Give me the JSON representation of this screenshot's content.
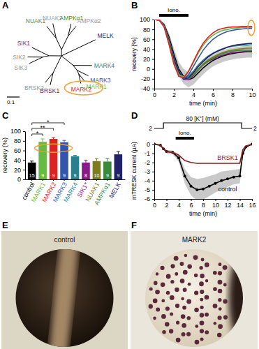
{
  "chart_data": [
    {
      "type": "tree",
      "panel": "A",
      "scale_bar": 0.1,
      "tree": {
        "children": [
          {
            "length": 0.05,
            "children": [
              {
                "length": 0.1,
                "children": [
                  {
                    "name": "NUAK1",
                    "color": "#7d7d1e",
                    "length": 0.12
                  },
                  {
                    "name": "NUAK2",
                    "color": "#999999",
                    "length": 0.12
                  }
                ]
              },
              {
                "length": 0.12,
                "children": [
                  {
                    "name": "AMPKα1",
                    "color": "#3a8a3a",
                    "length": 0.1
                  },
                  {
                    "name": "AMPKα2",
                    "color": "#999999",
                    "length": 0.1
                  }
                ]
              }
            ]
          },
          {
            "name": "MELK",
            "color": "#222266",
            "length": 0.3
          },
          {
            "length": 0.12,
            "children": [
              {
                "name": "MARK4",
                "color": "#2a7f8f",
                "length": 0.15
              },
              {
                "length": 0.05,
                "children": [
                  {
                    "name": "MARK3",
                    "color": "#3355aa",
                    "length": 0.1
                  },
                  {
                    "length": 0.03,
                    "children": [
                      {
                        "name": "MARK1",
                        "color": "#66bb44",
                        "length": 0.08
                      },
                      {
                        "name": "MARK2",
                        "color": "#dd2222",
                        "length": 0.08
                      }
                    ]
                  }
                ]
              }
            ]
          },
          {
            "length": 0.15,
            "children": [
              {
                "name": "BRSK1",
                "color": "#8b1a1a",
                "length": 0.1
              },
              {
                "name": "BRSK2",
                "color": "#999999",
                "length": 0.1
              }
            ]
          },
          {
            "length": 0.1,
            "children": [
              {
                "length": 0.05,
                "children": [
                  {
                    "name": "SIK3",
                    "color": "#999999",
                    "length": 0.12
                  },
                  {
                    "name": "SIK2",
                    "color": "#999999",
                    "length": 0.12
                  }
                ]
              },
              {
                "name": "SIK1",
                "color": "#8a1a8a",
                "length": 0.15
              }
            ]
          }
        ]
      }
    },
    {
      "type": "line",
      "panel": "B",
      "xlabel": "time (min)",
      "ylabel": "recovery (%)",
      "x": [
        0,
        0.5,
        1,
        1.5,
        2,
        2.5,
        3,
        3.5,
        4,
        4.5,
        5,
        5.5,
        6,
        6.5,
        7,
        7.5,
        8,
        8.5,
        9,
        9.5,
        10
      ],
      "xlim": [
        0,
        10
      ],
      "xticks": [
        0,
        2,
        4,
        6,
        8,
        10
      ],
      "ylim": [
        -40,
        100
      ],
      "yticks": [
        -40,
        -20,
        0,
        20,
        40,
        60,
        80,
        100
      ],
      "bars": [
        {
          "label": "Iono.",
          "from": 0.5,
          "to": 3.5
        }
      ],
      "series": [
        {
          "color": "#000000",
          "values": [
            100,
            99,
            90,
            65,
            30,
            0,
            -15,
            -22,
            -18,
            -8,
            2,
            10,
            17,
            22,
            26,
            29,
            31,
            33,
            34,
            35,
            35
          ],
          "error": [
            0,
            0,
            3,
            8,
            12,
            14,
            15,
            15,
            14,
            13,
            13,
            12,
            12,
            12,
            12,
            12,
            12,
            12,
            12,
            12,
            12
          ]
        },
        {
          "color": "#2a7f8f",
          "values": [
            100,
            99,
            88,
            58,
            20,
            -5,
            -18,
            -15,
            -5,
            8,
            18,
            26,
            32,
            37,
            41,
            44,
            46,
            47,
            48,
            48,
            49
          ]
        },
        {
          "color": "#8a1a8a",
          "values": [
            100,
            99,
            88,
            60,
            22,
            -5,
            -22,
            -22,
            -14,
            -2,
            8,
            15,
            20,
            25,
            28,
            31,
            33,
            34,
            35,
            36,
            36
          ]
        },
        {
          "color": "#7d7d1e",
          "values": [
            100,
            99,
            88,
            60,
            22,
            -5,
            -20,
            -20,
            -12,
            0,
            10,
            18,
            24,
            29,
            33,
            36,
            38,
            40,
            41,
            42,
            42
          ]
        },
        {
          "color": "#3a8a3a",
          "values": [
            100,
            99,
            88,
            60,
            22,
            -4,
            -20,
            -20,
            -12,
            -2,
            8,
            16,
            22,
            27,
            31,
            34,
            36,
            37,
            38,
            38,
            38
          ]
        },
        {
          "color": "#222266",
          "values": [
            100,
            99,
            88,
            58,
            20,
            -5,
            -20,
            -18,
            -8,
            5,
            15,
            24,
            31,
            36,
            40,
            44,
            47,
            49,
            50,
            51,
            52
          ]
        },
        {
          "color": "#3355aa",
          "values": [
            100,
            99,
            87,
            55,
            15,
            -10,
            -20,
            -12,
            5,
            22,
            38,
            50,
            60,
            67,
            72,
            76,
            78,
            80,
            81,
            82,
            82
          ]
        },
        {
          "color": "#66bb44",
          "values": [
            100,
            99,
            86,
            52,
            12,
            -12,
            -16,
            -5,
            13,
            32,
            48,
            60,
            68,
            74,
            78,
            80,
            82,
            83,
            84,
            84,
            84
          ]
        },
        {
          "color": "#dd2222",
          "values": [
            100,
            99,
            85,
            50,
            10,
            -15,
            -18,
            -5,
            15,
            35,
            52,
            64,
            73,
            79,
            82,
            84,
            85,
            85,
            86,
            86,
            86
          ]
        }
      ]
    },
    {
      "type": "bar",
      "panel": "C",
      "ylabel": "recovery (%)",
      "categories": [
        "control",
        "MARK1",
        "MARK2",
        "MARK3",
        "MARK4",
        "SIK1*",
        "NUAK1",
        "AMPKα1",
        "MELK"
      ],
      "values": [
        35,
        78,
        84,
        77,
        48,
        35,
        38,
        37,
        52
      ],
      "error": [
        3,
        6,
        3,
        4,
        2,
        5,
        5,
        6,
        6
      ],
      "n": [
        15,
        9,
        9,
        9,
        9,
        8,
        10,
        9,
        9
      ],
      "colors": [
        "#000000",
        "#66bb44",
        "#dd2222",
        "#3355aa",
        "#2a7f8f",
        "#8a1a8a",
        "#7d7d1e",
        "#3a8a3a",
        "#222266"
      ],
      "ylim": [
        0,
        100
      ],
      "yticks": [
        0,
        20,
        40,
        60,
        80,
        100
      ],
      "annotations": [
        {
          "from": "control",
          "to": "MARK1",
          "label": "*"
        },
        {
          "from": "control",
          "to": "MARK2",
          "label": "**"
        },
        {
          "from": "control",
          "to": "MARK3",
          "label": "*"
        }
      ]
    },
    {
      "type": "line",
      "panel": "D",
      "xlabel": "time (min)",
      "ylabel": "mTRESK current (µA)",
      "x": [
        0,
        1,
        1.5,
        2,
        3,
        4,
        5,
        6,
        7,
        8,
        9,
        10,
        11,
        12,
        13,
        14,
        14.5,
        15,
        16
      ],
      "xlim": [
        0,
        16
      ],
      "xticks": [
        0,
        2,
        4,
        6,
        8,
        10,
        12,
        14,
        16
      ],
      "ylim": [
        -6,
        0.2
      ],
      "yticks": [
        -6,
        -5,
        -4,
        -3,
        -2,
        -1,
        0
      ],
      "bars": [
        {
          "label": "Iono.",
          "from": 3.5,
          "to": 6.5
        }
      ],
      "step": {
        "label": "80 [K⁺] (mM)",
        "from": 1.5,
        "to": 14.3,
        "outside_labels": [
          "2",
          "2"
        ]
      },
      "series": [
        {
          "name": "control",
          "color": "#000000",
          "marker": "circle",
          "values": [
            0,
            -0.1,
            -0.5,
            -0.8,
            -0.9,
            -1.5,
            -3.5,
            -4.6,
            -5,
            -4.9,
            -4.6,
            -4.3,
            -4,
            -3.8,
            -3.6,
            -3.5,
            -1,
            -0.3,
            0
          ],
          "error": [
            0,
            0,
            0.1,
            0.2,
            0.2,
            0.4,
            0.8,
            1,
            1.2,
            1.2,
            1.1,
            1,
            1,
            0.9,
            0.8,
            0.8,
            0.3,
            0.1,
            0
          ]
        },
        {
          "name": "BRSK1",
          "color": "#8b1a1a",
          "values": [
            0,
            -0.1,
            -0.5,
            -0.8,
            -0.9,
            -1.2,
            -1.8,
            -2,
            -2.1,
            -2.1,
            -2.1,
            -2.1,
            -2.1,
            -2.1,
            -2.1,
            -2.1,
            -0.6,
            -0.2,
            0
          ]
        }
      ]
    },
    {
      "type": "image",
      "panel": "E",
      "title": "control"
    },
    {
      "type": "image",
      "panel": "F",
      "title": "MARK2"
    }
  ]
}
